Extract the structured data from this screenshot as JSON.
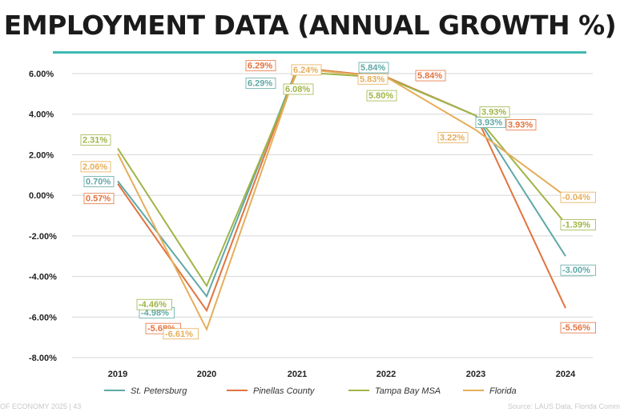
{
  "title": "EMPLOYMENT DATA (ANNUAL GROWTH %)",
  "footer_left": "OF ECONOMY 2025 | 43",
  "footer_right": "Source: LAUS Data, Florida Comm",
  "chart_data": {
    "type": "line",
    "categories": [
      "2019",
      "2020",
      "2021",
      "2022",
      "2023",
      "2024"
    ],
    "ylim": [
      -8,
      6
    ],
    "yticks": [
      "6.00%",
      "4.00%",
      "2.00%",
      "0.00%",
      "-2.00%",
      "-4.00%",
      "-6.00%",
      "-8.00%"
    ],
    "grid": true,
    "legend_position": "bottom",
    "series": [
      {
        "name": "St. Petersburg",
        "color": "#5fa8a6",
        "values": [
          0.7,
          -4.98,
          6.29,
          5.84,
          3.93,
          -3.0
        ],
        "labels": [
          "0.70%",
          "-4.98%",
          "6.29%",
          "5.84%",
          "3.93%",
          "-3.00%"
        ]
      },
      {
        "name": "Pinellas County",
        "color": "#e2733f",
        "values": [
          0.57,
          -5.68,
          6.29,
          5.84,
          3.93,
          -5.56
        ],
        "labels": [
          "0.57%",
          "-5.68%",
          "6.29%",
          "5.84%",
          "3.93%",
          "-5.56%"
        ]
      },
      {
        "name": "Tampa Bay MSA",
        "color": "#9fb548",
        "values": [
          2.31,
          -4.46,
          6.08,
          5.8,
          3.93,
          -1.39
        ],
        "labels": [
          "2.31%",
          "-4.46%",
          "6.08%",
          "5.80%",
          "3.93%",
          "-1.39%"
        ]
      },
      {
        "name": "Florida",
        "color": "#e5ae5a",
        "values": [
          2.06,
          -6.61,
          6.24,
          5.83,
          3.22,
          -0.04
        ],
        "labels": [
          "2.06%",
          "-6.61%",
          "6.24%",
          "5.83%",
          "3.22%",
          "-0.04%"
        ]
      }
    ]
  }
}
